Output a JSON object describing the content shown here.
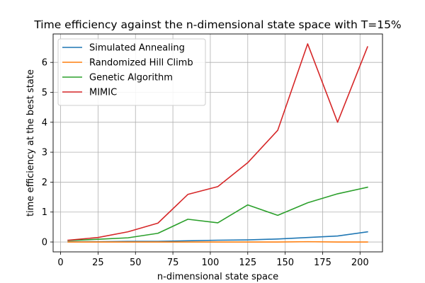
{
  "chart_data": {
    "type": "line",
    "title": "Time efficiency against the n-dimensional state space with T=15%",
    "xlabel": "n-dimensional state space",
    "ylabel": "time efficiency at the best state",
    "x": [
      5,
      25,
      45,
      65,
      85,
      105,
      125,
      145,
      165,
      185,
      205
    ],
    "xlim": [
      -5.0,
      215.0
    ],
    "ylim": [
      -0.33,
      6.95
    ],
    "xticks": [
      0,
      25,
      50,
      75,
      100,
      125,
      150,
      175,
      200
    ],
    "yticks": [
      0,
      1,
      2,
      3,
      4,
      5,
      6
    ],
    "grid": true,
    "legend_position": "upper-left",
    "series": [
      {
        "name": "Simulated Annealing",
        "color": "#1f77b4",
        "values": [
          0.01,
          0.01,
          0.02,
          0.02,
          0.04,
          0.06,
          0.07,
          0.1,
          0.15,
          0.2,
          0.34
        ]
      },
      {
        "name": "Randomized Hill Climb",
        "color": "#ff7f0e",
        "values": [
          0.0,
          0.0,
          0.0,
          0.0,
          0.0,
          0.0,
          0.0,
          0.0,
          0.01,
          0.0,
          0.0
        ]
      },
      {
        "name": "Genetic Algorithm",
        "color": "#2ca02c",
        "values": [
          0.05,
          0.09,
          0.14,
          0.29,
          0.76,
          0.64,
          1.24,
          0.89,
          1.31,
          1.61,
          1.83
        ]
      },
      {
        "name": "MIMIC",
        "color": "#d62728",
        "values": [
          0.06,
          0.15,
          0.34,
          0.63,
          1.59,
          1.85,
          2.65,
          3.73,
          6.62,
          4.0,
          6.52
        ]
      }
    ]
  }
}
